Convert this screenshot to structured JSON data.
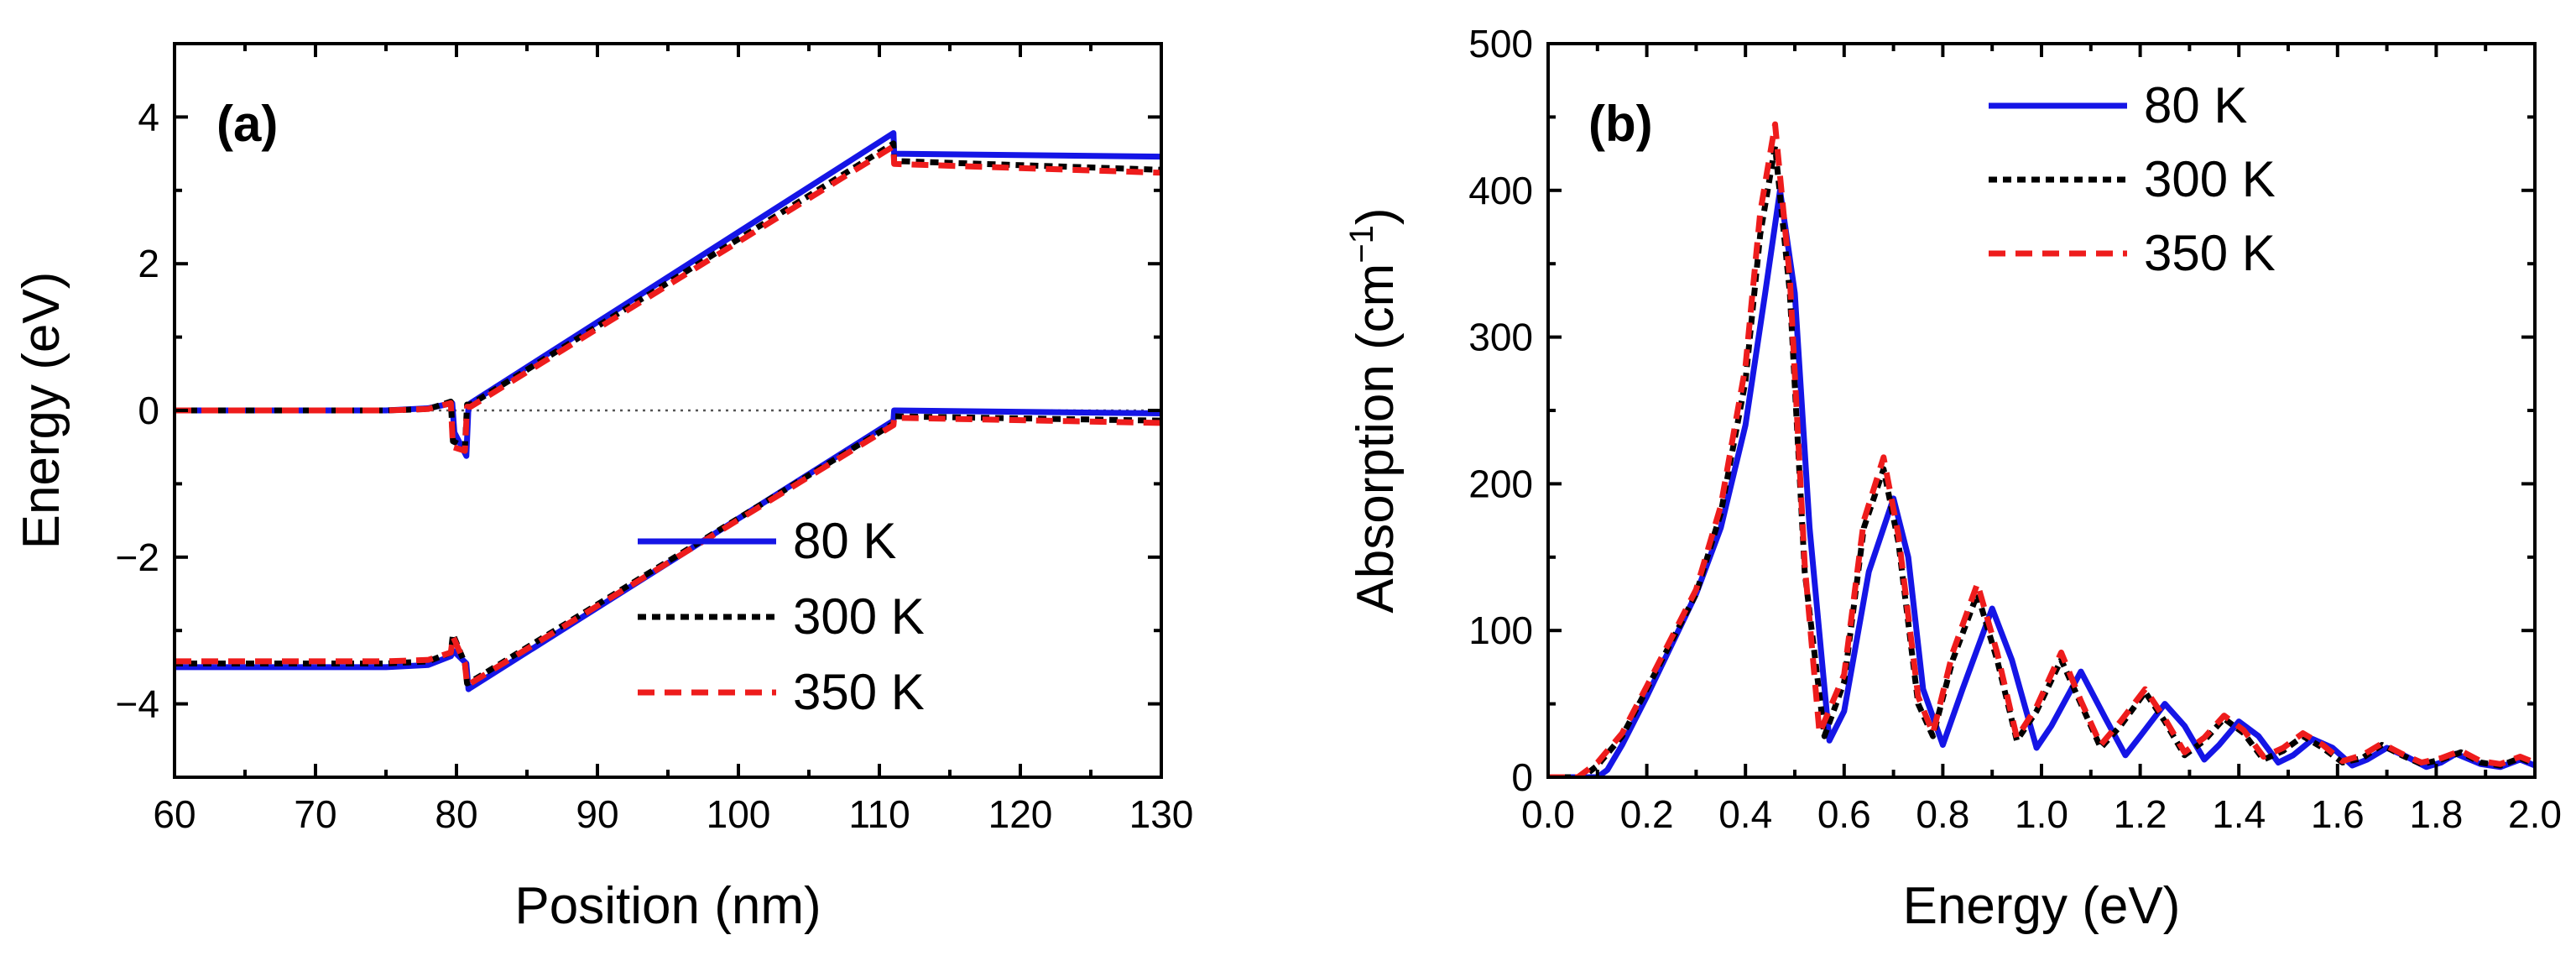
{
  "figure": {
    "legend_series": [
      "80 K",
      "300 K",
      "350 K"
    ],
    "colors": {
      "80 K": "#1515e6",
      "300 K": "#000000",
      "350 K": "#ee1c1c"
    },
    "dash": {
      "80 K": "solid",
      "300 K": "short-dash",
      "350 K": "dash"
    }
  },
  "chart_data": [
    {
      "panel": "(a)",
      "type": "line",
      "title": "",
      "xlabel": "Position (nm)",
      "ylabel": "Energy (eV)",
      "xlim": [
        60,
        130
      ],
      "ylim": [
        -5,
        5
      ],
      "xticks": [
        60,
        70,
        80,
        90,
        100,
        110,
        120,
        130
      ],
      "xtick_labels": [
        "60",
        "70",
        "80",
        "90",
        "100",
        "110",
        "120",
        "130"
      ],
      "yticks": [
        -4,
        -2,
        0,
        2,
        4
      ],
      "ytick_labels": [
        "−4",
        "−2",
        "0",
        "2",
        "4"
      ],
      "legend": "bottom-right",
      "reference_line": {
        "y": 0,
        "style": "dotted"
      },
      "series": [
        {
          "name": "80 K",
          "band": "conduction",
          "points": [
            [
              60,
              0
            ],
            [
              75,
              0
            ],
            [
              78,
              0.03
            ],
            [
              79.7,
              0.1
            ],
            [
              79.85,
              -0.3
            ],
            [
              80.7,
              -0.62
            ],
            [
              80.85,
              0.05
            ],
            [
              81,
              0.1
            ],
            [
              111,
              3.78
            ],
            [
              111.05,
              3.5
            ],
            [
              130,
              3.46
            ]
          ]
        },
        {
          "name": "80 K",
          "band": "valence",
          "points": [
            [
              60,
              -3.5
            ],
            [
              75,
              -3.5
            ],
            [
              78,
              -3.47
            ],
            [
              79.6,
              -3.35
            ],
            [
              79.8,
              -3.28
            ],
            [
              80.7,
              -3.45
            ],
            [
              80.85,
              -3.8
            ],
            [
              81,
              -3.78
            ],
            [
              111,
              -0.14
            ],
            [
              111.05,
              0
            ],
            [
              130,
              -0.04
            ]
          ]
        },
        {
          "name": "300 K",
          "band": "conduction",
          "points": [
            [
              60,
              0
            ],
            [
              75,
              0
            ],
            [
              78,
              0.02
            ],
            [
              79.6,
              0.12
            ],
            [
              79.75,
              -0.42
            ],
            [
              80.6,
              -0.5
            ],
            [
              80.75,
              0.08
            ],
            [
              81,
              0.08
            ],
            [
              111,
              3.64
            ],
            [
              111.05,
              3.4
            ],
            [
              130,
              3.28
            ]
          ]
        },
        {
          "name": "300 K",
          "band": "valence",
          "points": [
            [
              60,
              -3.45
            ],
            [
              75,
              -3.45
            ],
            [
              78,
              -3.42
            ],
            [
              79.6,
              -3.3
            ],
            [
              79.75,
              -3.05
            ],
            [
              80.6,
              -3.45
            ],
            [
              80.75,
              -3.72
            ],
            [
              81,
              -3.7
            ],
            [
              111,
              -0.18
            ],
            [
              111.05,
              -0.08
            ],
            [
              130,
              -0.14
            ]
          ]
        },
        {
          "name": "350 K",
          "band": "conduction",
          "points": [
            [
              60,
              0
            ],
            [
              75,
              0
            ],
            [
              78,
              0.02
            ],
            [
              79.6,
              0.1
            ],
            [
              79.75,
              -0.5
            ],
            [
              80.6,
              -0.55
            ],
            [
              80.75,
              0.05
            ],
            [
              81,
              0.05
            ],
            [
              111,
              3.6
            ],
            [
              111.05,
              3.36
            ],
            [
              130,
              3.24
            ]
          ]
        },
        {
          "name": "350 K",
          "band": "valence",
          "points": [
            [
              60,
              -3.42
            ],
            [
              75,
              -3.42
            ],
            [
              78,
              -3.4
            ],
            [
              79.6,
              -3.3
            ],
            [
              79.75,
              -3.08
            ],
            [
              80.6,
              -3.45
            ],
            [
              80.75,
              -3.74
            ],
            [
              81,
              -3.72
            ],
            [
              111,
              -0.2
            ],
            [
              111.05,
              -0.1
            ],
            [
              130,
              -0.17
            ]
          ]
        }
      ]
    },
    {
      "panel": "(b)",
      "type": "line",
      "title": "",
      "xlabel": "Energy (eV)",
      "ylabel": "Absorption (cm",
      "ylabel_superscript": "−1",
      "ylabel_suffix": ")",
      "xlim": [
        0.0,
        2.0
      ],
      "ylim": [
        0,
        500
      ],
      "xticks": [
        0.0,
        0.2,
        0.4,
        0.6,
        0.8,
        1.0,
        1.2,
        1.4,
        1.6,
        1.8,
        2.0
      ],
      "xtick_labels": [
        "0.0",
        "0.2",
        "0.4",
        "0.6",
        "0.8",
        "1.0",
        "1.2",
        "1.4",
        "1.6",
        "1.8",
        "2.0"
      ],
      "yticks": [
        0,
        100,
        200,
        300,
        400,
        500
      ],
      "ytick_labels": [
        "0",
        "100",
        "200",
        "300",
        "400",
        "500"
      ],
      "legend": "top-right",
      "series": [
        {
          "name": "80 K",
          "points": [
            [
              0,
              0
            ],
            [
              0.1,
              0
            ],
            [
              0.12,
              5
            ],
            [
              0.15,
              22
            ],
            [
              0.2,
              55
            ],
            [
              0.3,
              125
            ],
            [
              0.35,
              170
            ],
            [
              0.4,
              240
            ],
            [
              0.44,
              330
            ],
            [
              0.47,
              400
            ],
            [
              0.5,
              330
            ],
            [
              0.53,
              170
            ],
            [
              0.57,
              25
            ],
            [
              0.6,
              45
            ],
            [
              0.65,
              140
            ],
            [
              0.7,
              190
            ],
            [
              0.73,
              150
            ],
            [
              0.76,
              60
            ],
            [
              0.8,
              22
            ],
            [
              0.84,
              60
            ],
            [
              0.9,
              115
            ],
            [
              0.94,
              80
            ],
            [
              0.99,
              20
            ],
            [
              1.02,
              35
            ],
            [
              1.08,
              72
            ],
            [
              1.13,
              40
            ],
            [
              1.17,
              15
            ],
            [
              1.2,
              28
            ],
            [
              1.25,
              50
            ],
            [
              1.29,
              35
            ],
            [
              1.33,
              12
            ],
            [
              1.36,
              22
            ],
            [
              1.4,
              38
            ],
            [
              1.44,
              28
            ],
            [
              1.48,
              10
            ],
            [
              1.51,
              15
            ],
            [
              1.55,
              26
            ],
            [
              1.59,
              20
            ],
            [
              1.63,
              8
            ],
            [
              1.66,
              12
            ],
            [
              1.7,
              20
            ],
            [
              1.74,
              14
            ],
            [
              1.78,
              7
            ],
            [
              1.81,
              10
            ],
            [
              1.84,
              16
            ],
            [
              1.89,
              9
            ],
            [
              1.93,
              7
            ],
            [
              1.97,
              12
            ],
            [
              2.0,
              8
            ]
          ]
        },
        {
          "name": "300 K",
          "points": [
            [
              0,
              0
            ],
            [
              0.07,
              0
            ],
            [
              0.1,
              8
            ],
            [
              0.15,
              28
            ],
            [
              0.2,
              60
            ],
            [
              0.3,
              125
            ],
            [
              0.35,
              180
            ],
            [
              0.4,
              270
            ],
            [
              0.43,
              370
            ],
            [
              0.46,
              430
            ],
            [
              0.49,
              330
            ],
            [
              0.52,
              140
            ],
            [
              0.56,
              28
            ],
            [
              0.6,
              65
            ],
            [
              0.64,
              170
            ],
            [
              0.68,
              210
            ],
            [
              0.71,
              160
            ],
            [
              0.75,
              50
            ],
            [
              0.78,
              28
            ],
            [
              0.82,
              80
            ],
            [
              0.87,
              125
            ],
            [
              0.91,
              80
            ],
            [
              0.95,
              25
            ],
            [
              0.99,
              45
            ],
            [
              1.04,
              80
            ],
            [
              1.08,
              50
            ],
            [
              1.12,
              20
            ],
            [
              1.16,
              35
            ],
            [
              1.21,
              58
            ],
            [
              1.25,
              38
            ],
            [
              1.29,
              15
            ],
            [
              1.33,
              25
            ],
            [
              1.37,
              40
            ],
            [
              1.41,
              30
            ],
            [
              1.45,
              12
            ],
            [
              1.49,
              18
            ],
            [
              1.53,
              28
            ],
            [
              1.57,
              20
            ],
            [
              1.61,
              10
            ],
            [
              1.65,
              13
            ],
            [
              1.69,
              22
            ],
            [
              1.73,
              15
            ],
            [
              1.77,
              9
            ],
            [
              1.81,
              12
            ],
            [
              1.85,
              17
            ],
            [
              1.89,
              10
            ],
            [
              1.93,
              8
            ],
            [
              1.97,
              13
            ],
            [
              2.0,
              9
            ]
          ]
        },
        {
          "name": "350 K",
          "points": [
            [
              0,
              0
            ],
            [
              0.06,
              0
            ],
            [
              0.1,
              10
            ],
            [
              0.15,
              30
            ],
            [
              0.2,
              62
            ],
            [
              0.3,
              128
            ],
            [
              0.35,
              185
            ],
            [
              0.4,
              280
            ],
            [
              0.43,
              385
            ],
            [
              0.46,
              445
            ],
            [
              0.49,
              340
            ],
            [
              0.52,
              145
            ],
            [
              0.55,
              30
            ],
            [
              0.6,
              70
            ],
            [
              0.64,
              175
            ],
            [
              0.68,
              218
            ],
            [
              0.71,
              165
            ],
            [
              0.75,
              55
            ],
            [
              0.78,
              30
            ],
            [
              0.82,
              85
            ],
            [
              0.87,
              132
            ],
            [
              0.91,
              85
            ],
            [
              0.95,
              27
            ],
            [
              0.99,
              48
            ],
            [
              1.04,
              85
            ],
            [
              1.08,
              52
            ],
            [
              1.12,
              22
            ],
            [
              1.16,
              38
            ],
            [
              1.21,
              60
            ],
            [
              1.25,
              40
            ],
            [
              1.29,
              17
            ],
            [
              1.33,
              27
            ],
            [
              1.37,
              42
            ],
            [
              1.41,
              32
            ],
            [
              1.45,
              14
            ],
            [
              1.49,
              20
            ],
            [
              1.53,
              30
            ],
            [
              1.57,
              22
            ],
            [
              1.61,
              11
            ],
            [
              1.65,
              15
            ],
            [
              1.69,
              23
            ],
            [
              1.73,
              16
            ],
            [
              1.77,
              10
            ],
            [
              1.81,
              13
            ],
            [
              1.85,
              18
            ],
            [
              1.89,
              11
            ],
            [
              1.93,
              9
            ],
            [
              1.97,
              14
            ],
            [
              2.0,
              10
            ]
          ]
        }
      ]
    }
  ]
}
